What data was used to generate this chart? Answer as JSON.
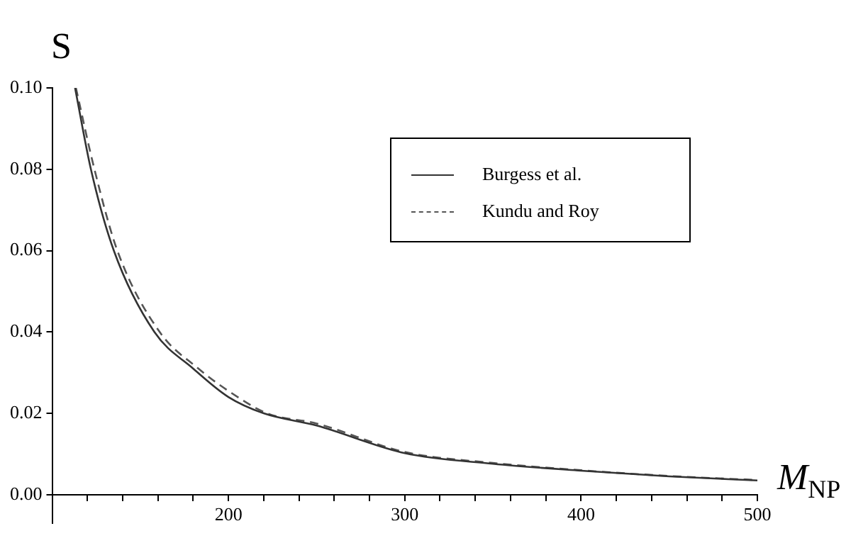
{
  "chart_data": {
    "type": "line",
    "xlabel": "M$_{NP}$",
    "ylabel": "S",
    "xlim": [
      100,
      500
    ],
    "ylim": [
      -0.007,
      0.1
    ],
    "xticks": [
      {
        "value": 120,
        "label": null
      },
      {
        "value": 140,
        "label": null
      },
      {
        "value": 160,
        "label": null
      },
      {
        "value": 180,
        "label": null
      },
      200,
      {
        "value": 220,
        "label": null
      },
      {
        "value": 240,
        "label": null
      },
      {
        "value": 260,
        "label": null
      },
      {
        "value": 280,
        "label": null
      },
      300,
      {
        "value": 320,
        "label": null
      },
      {
        "value": 340,
        "label": null
      },
      {
        "value": 360,
        "label": null
      },
      {
        "value": 380,
        "label": null
      },
      400,
      {
        "value": 420,
        "label": null
      },
      {
        "value": 440,
        "label": null
      },
      {
        "value": 460,
        "label": null
      },
      {
        "value": 480,
        "label": null
      },
      500
    ],
    "yticks": [
      {
        "value": 0,
        "label": "0.00"
      },
      {
        "value": 0.02,
        "label": "0.02"
      },
      {
        "value": 0.04,
        "label": "0.04"
      },
      {
        "value": 0.06,
        "label": "0.06"
      },
      {
        "value": 0.08,
        "label": "0.08"
      },
      {
        "value": 0.1,
        "label": "0.10"
      }
    ],
    "grid": false,
    "legend": "top right",
    "marker": "none",
    "series": [
      {
        "name": "Burgess et al.",
        "color": "#333333",
        "line_style": "solid",
        "x": [
          113,
          122,
          135,
          158,
          180,
          200,
          220,
          250,
          300,
          350,
          400,
          450,
          500
        ],
        "values": [
          0.1,
          0.08,
          0.06,
          0.04,
          0.031,
          0.024,
          0.02,
          0.017,
          0.0102,
          0.0076,
          0.0059,
          0.0045,
          0.0035
        ]
      },
      {
        "name": "Kundu and Roy",
        "color": "#555555",
        "line_style": "dashed",
        "x": [
          113.5,
          124,
          137,
          161,
          183,
          200,
          222,
          250,
          300,
          350,
          400,
          450,
          500
        ],
        "values": [
          0.1,
          0.08,
          0.06,
          0.04,
          0.031,
          0.0255,
          0.02,
          0.0175,
          0.0105,
          0.0078,
          0.006,
          0.0046,
          0.0036
        ]
      }
    ]
  }
}
